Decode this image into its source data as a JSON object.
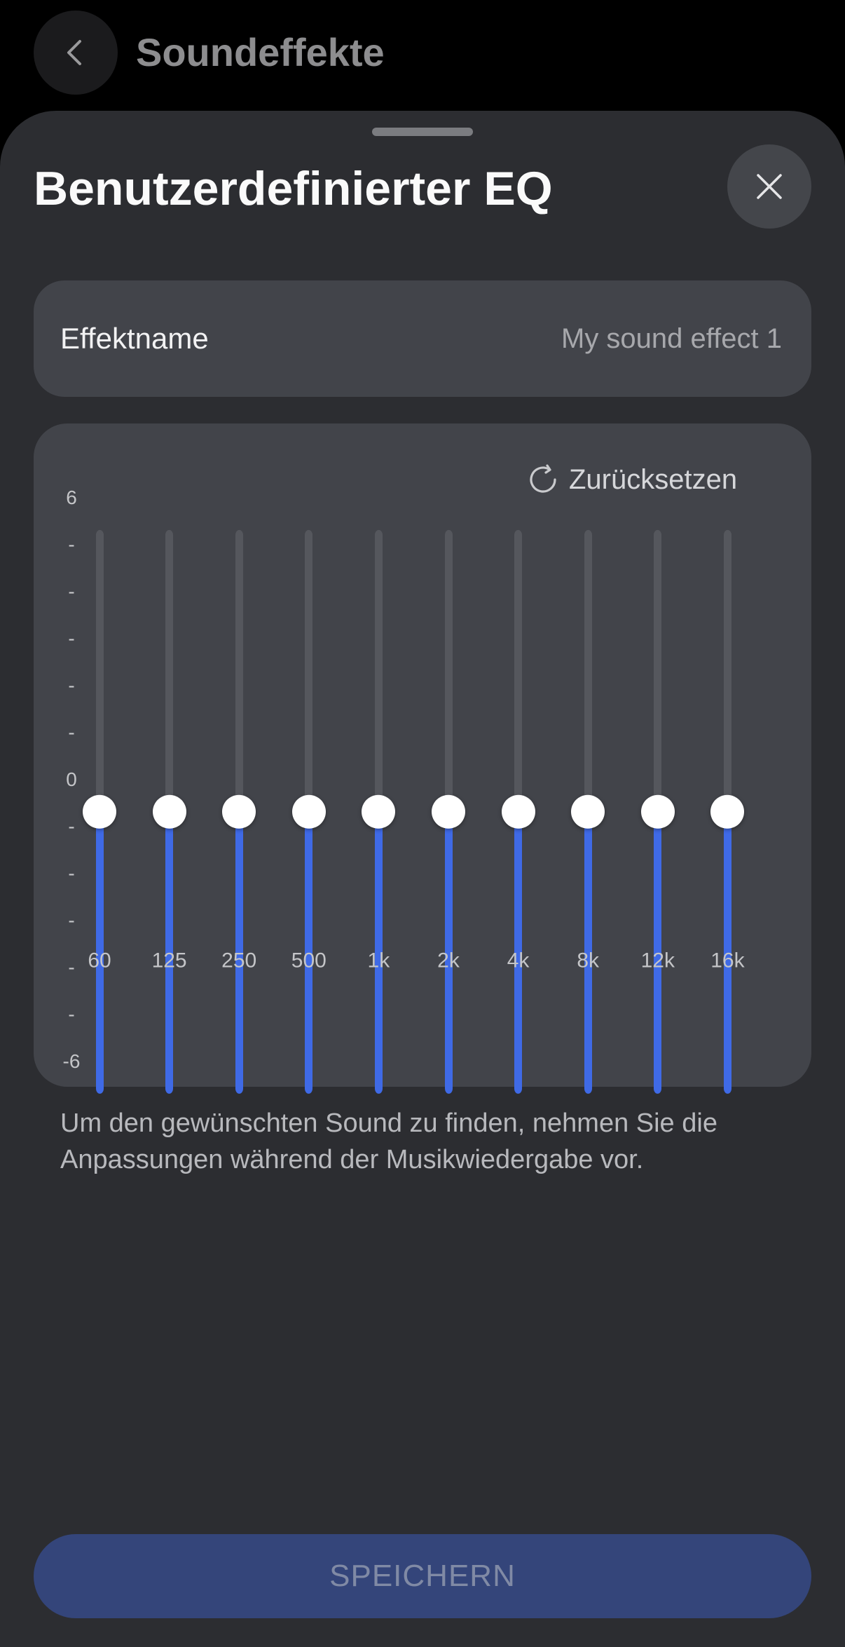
{
  "header": {
    "title": "Soundeffekte",
    "back_icon": "chevron-left-icon"
  },
  "sheet": {
    "title": "Benutzerdefinierter EQ",
    "close_icon": "close-icon"
  },
  "effect_name": {
    "label": "Effektname",
    "value": "My sound effect 1"
  },
  "equalizer": {
    "reset_label": "Zurücksetzen",
    "reset_icon": "refresh-icon",
    "y_axis_labels": [
      "6",
      "-",
      "-",
      "-",
      "-",
      "-",
      "0",
      "-",
      "-",
      "-",
      "-",
      "-",
      "-6"
    ],
    "y_range": [
      -6,
      6
    ],
    "bands": [
      {
        "freq": "60",
        "gain": 0
      },
      {
        "freq": "125",
        "gain": 0
      },
      {
        "freq": "250",
        "gain": 0
      },
      {
        "freq": "500",
        "gain": 0
      },
      {
        "freq": "1k",
        "gain": 0
      },
      {
        "freq": "2k",
        "gain": 0
      },
      {
        "freq": "4k",
        "gain": 0
      },
      {
        "freq": "8k",
        "gain": 0
      },
      {
        "freq": "12k",
        "gain": 0
      },
      {
        "freq": "16k",
        "gain": 0
      }
    ],
    "colors": {
      "fill": "#3f6ae6",
      "track": "#55575d",
      "knob": "#ffffff"
    }
  },
  "hint_text": "Um den gewünschten Sound zu finden, nehmen Sie die Anpassungen während der Musikwiedergabe vor.",
  "save_label": "SPEICHERN"
}
